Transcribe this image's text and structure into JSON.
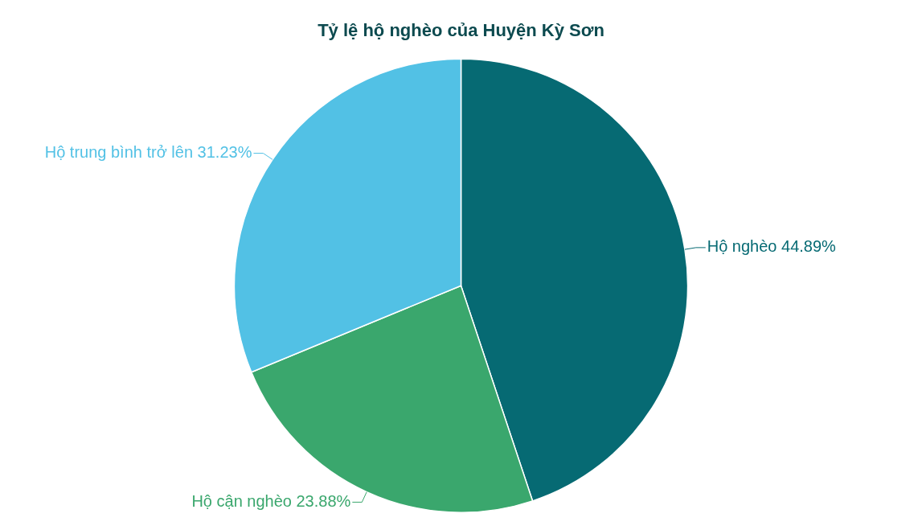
{
  "chart_data": {
    "type": "pie",
    "title": "Tỷ lệ hộ nghèo của Huyện Kỳ Sơn",
    "categories": [
      "Hộ nghèo",
      "Hộ cận nghèo",
      "Hộ trung bình trở lên"
    ],
    "values": [
      44.89,
      23.88,
      31.23
    ],
    "colors": [
      "#066a73",
      "#3aa76d",
      "#52c1e5"
    ],
    "value_labels": [
      "44.89%",
      "23.88%",
      "31.23%"
    ],
    "legend": false
  }
}
